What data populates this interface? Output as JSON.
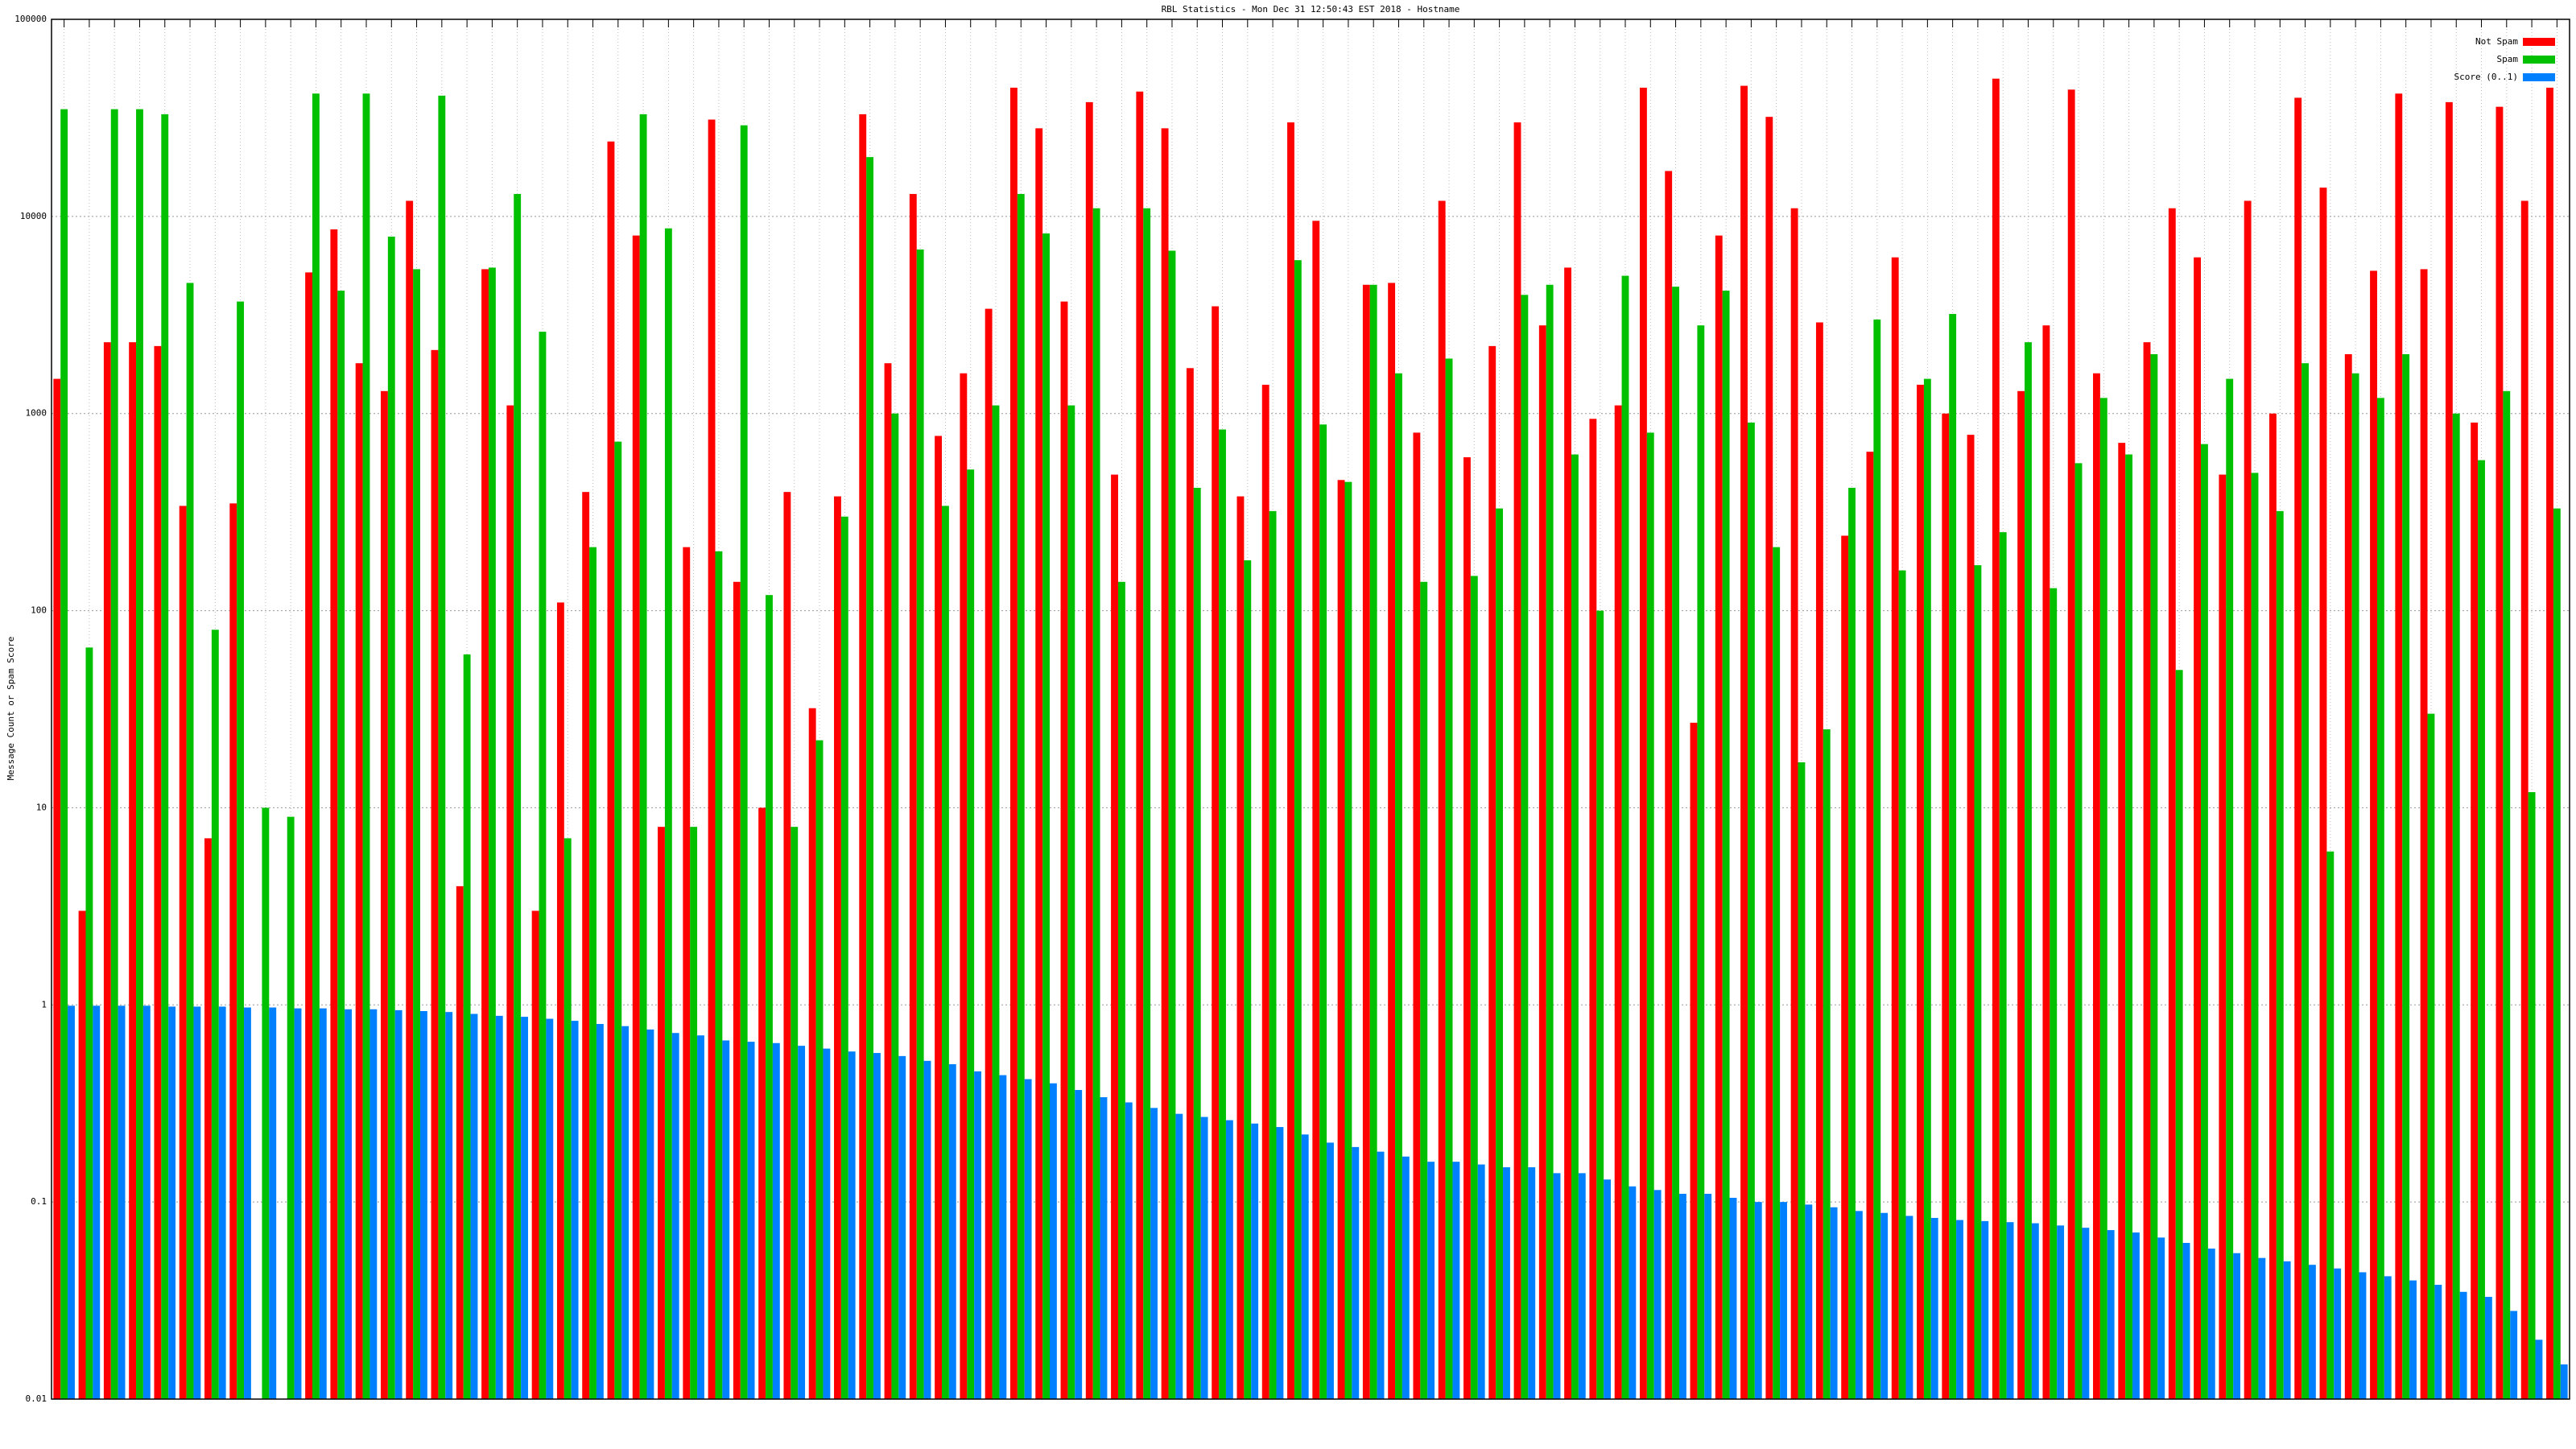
{
  "chart_data": {
    "type": "bar",
    "title": "RBL Statistics - Mon Dec 31 12:50:43 EST 2018 - Hostname",
    "y_label": "Message Count or Spam Score",
    "log_scale": true,
    "grid": true,
    "legend": "top-right",
    "ylim": [
      0.01,
      100000
    ],
    "yticks": [
      0.01,
      0.1,
      1,
      10,
      100,
      1000,
      10000,
      100000
    ],
    "categories": [
      null,
      null,
      null,
      null,
      null,
      null,
      null,
      null,
      null,
      null,
      null,
      null,
      null,
      null,
      null,
      null,
      null,
      null,
      null,
      null,
      null,
      null,
      null,
      null,
      null,
      null,
      null,
      null,
      null,
      null,
      null,
      null,
      null,
      null,
      null,
      null,
      null,
      null,
      null,
      null,
      null,
      null,
      null,
      null,
      null,
      null,
      null,
      null,
      null,
      null,
      null,
      null,
      null,
      null,
      null,
      null,
      null,
      null,
      null,
      null,
      null,
      null,
      null,
      null,
      null,
      null,
      null,
      null,
      null,
      null,
      null,
      null,
      null,
      null,
      null,
      null,
      null,
      null,
      null,
      null,
      null,
      null,
      null,
      null,
      null,
      null,
      null,
      null,
      null,
      null,
      null,
      null,
      null,
      null,
      null,
      null,
      null,
      null,
      null,
      null
    ],
    "series": [
      {
        "name": "Not Spam",
        "color": "#ff0000",
        "values": [
          1500,
          3,
          2300,
          2300,
          2200,
          340,
          7,
          350,
          null,
          null,
          5200,
          8600,
          1800,
          1300,
          12000,
          2100,
          4,
          5400,
          1100,
          3,
          110,
          400,
          24000,
          8000,
          8,
          210,
          31000,
          140,
          10,
          400,
          32,
          380,
          33000,
          1800,
          13000,
          770,
          1600,
          3400,
          45000,
          28000,
          3700,
          38000,
          490,
          43000,
          28000,
          1700,
          3500,
          380,
          1400,
          30000,
          9500,
          460,
          4500,
          4600,
          800,
          12000,
          600,
          2200,
          30000,
          2800,
          5500,
          940,
          1100,
          45000,
          17000,
          27,
          8000,
          46000,
          32000,
          11000,
          2900,
          240,
          640,
          6200,
          1400,
          1000,
          780,
          50000,
          1300,
          2800,
          44000,
          1600,
          710,
          2300,
          11000,
          6200,
          490,
          12000,
          1000,
          40000,
          14000,
          2000,
          5300,
          42000,
          5400,
          38000,
          900,
          36000,
          12000,
          45000
        ]
      },
      {
        "name": "Spam",
        "color": "#00c000",
        "values": [
          35000,
          65,
          35000,
          35000,
          33000,
          4600,
          80,
          3700,
          10,
          9,
          42000,
          4200,
          42000,
          7900,
          5400,
          41000,
          60,
          5500,
          13000,
          2600,
          7,
          210,
          720,
          33000,
          8700,
          8,
          200,
          29000,
          120,
          8,
          22,
          300,
          20000,
          1000,
          6800,
          340,
          520,
          1100,
          13000,
          8200,
          1100,
          11000,
          140,
          11000,
          6700,
          420,
          830,
          180,
          320,
          6000,
          880,
          450,
          4500,
          1600,
          140,
          1900,
          150,
          330,
          4000,
          4500,
          620,
          100,
          5000,
          800,
          4400,
          2800,
          4200,
          900,
          210,
          17,
          25,
          420,
          3000,
          160,
          1500,
          3200,
          170,
          250,
          2300,
          130,
          560,
          1200,
          620,
          2000,
          50,
          700,
          1500,
          500,
          320,
          1800,
          6,
          1600,
          1200,
          2000,
          30,
          1000,
          580,
          1300,
          12,
          330
        ]
      },
      {
        "name": "Score (0..1)",
        "color": "#0080ff",
        "values": [
          0.99,
          0.99,
          0.99,
          0.99,
          0.98,
          0.98,
          0.98,
          0.97,
          0.97,
          0.96,
          0.96,
          0.95,
          0.95,
          0.94,
          0.93,
          0.92,
          0.9,
          0.88,
          0.87,
          0.85,
          0.83,
          0.8,
          0.78,
          0.75,
          0.72,
          0.7,
          0.66,
          0.65,
          0.64,
          0.62,
          0.6,
          0.58,
          0.57,
          0.55,
          0.52,
          0.5,
          0.46,
          0.44,
          0.42,
          0.4,
          0.37,
          0.34,
          0.32,
          0.3,
          0.28,
          0.27,
          0.26,
          0.25,
          0.24,
          0.22,
          0.2,
          0.19,
          0.18,
          0.17,
          0.16,
          0.16,
          0.155,
          0.15,
          0.15,
          0.14,
          0.14,
          0.13,
          0.12,
          0.115,
          0.11,
          0.11,
          0.105,
          0.1,
          0.1,
          0.097,
          0.094,
          0.09,
          0.088,
          0.085,
          0.083,
          0.081,
          0.08,
          0.079,
          0.078,
          0.076,
          0.074,
          0.072,
          0.07,
          0.066,
          0.062,
          0.058,
          0.055,
          0.052,
          0.05,
          0.048,
          0.046,
          0.044,
          0.042,
          0.04,
          0.038,
          0.035,
          0.033,
          0.028,
          0.02,
          0.015
        ]
      }
    ]
  }
}
